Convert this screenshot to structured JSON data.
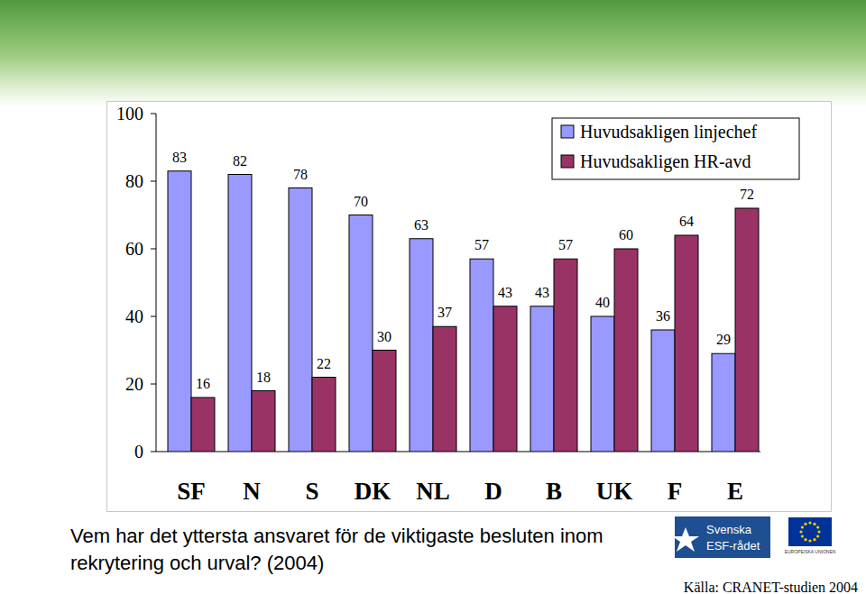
{
  "chart_data": {
    "type": "bar",
    "title": "Vem har det yttersta ansvaret för de viktigaste besluten inom rekrytering och urval? (2004)",
    "annotations": [
      "Källa: CRANET-studien 2004",
      "Svenska",
      "ESF-rådet",
      "EUROPEISKA UNIONEN"
    ],
    "categories": [
      "SF",
      "N",
      "S",
      "DK",
      "NL",
      "D",
      "B",
      "UK",
      "F",
      "E"
    ],
    "series": [
      {
        "name": "Huvudsakligen linjechef",
        "color": "#9999ff",
        "values": [
          83,
          82,
          78,
          70,
          63,
          57,
          43,
          40,
          36,
          29
        ]
      },
      {
        "name": "Huvudsakligen HR-avd",
        "color": "#993366",
        "values": [
          16,
          18,
          22,
          30,
          37,
          43,
          57,
          60,
          64,
          72
        ]
      }
    ],
    "ylim": [
      0,
      100
    ],
    "yticks": [
      0,
      20,
      40,
      60,
      80,
      100
    ],
    "grid": false,
    "legend": "upper right",
    "data_labels": true
  }
}
